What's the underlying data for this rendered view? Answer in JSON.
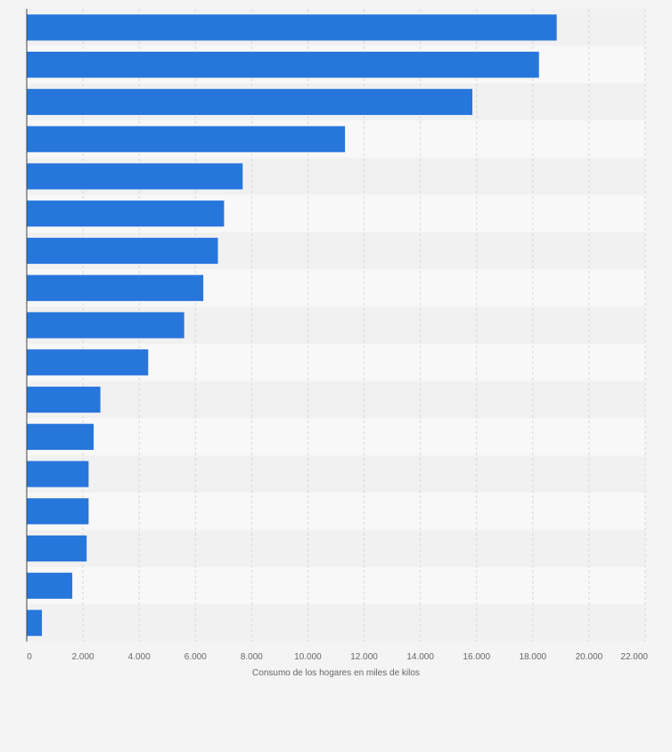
{
  "chart_data": {
    "type": "bar",
    "orientation": "horizontal",
    "xlabel": "Consumo de los hogares en miles de kilos",
    "xlim": [
      0,
      22000
    ],
    "x_ticks": [
      0,
      2000,
      4000,
      6000,
      8000,
      10000,
      12000,
      14000,
      16000,
      18000,
      20000,
      22000
    ],
    "x_tick_labels": [
      "0",
      "2.000",
      "4.000",
      "6.000",
      "8.000",
      "10.000",
      "12.000",
      "14.000",
      "16.000",
      "18.000",
      "20.000",
      "22.000"
    ],
    "values": [
      18850,
      18220,
      15850,
      11320,
      7680,
      7020,
      6800,
      6280,
      5600,
      4320,
      2620,
      2380,
      2200,
      2200,
      2130,
      1620,
      540
    ],
    "grid": true,
    "colors": {
      "bar": "#2776dc",
      "grid": "#d6d6d6",
      "band_dark": "#f1f1f1",
      "band_light": "#f8f8f8",
      "axis": "#444444",
      "text": "#666666"
    }
  }
}
